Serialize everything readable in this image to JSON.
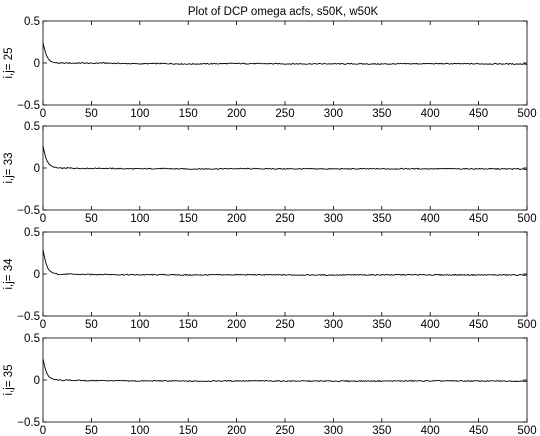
{
  "title": "Plot of DCP omega acfs, s50K, w50K",
  "chart_data": [
    {
      "type": "line",
      "ylabel": "i,j= 25",
      "xlim": [
        0,
        500
      ],
      "ylim": [
        -0.5,
        0.5
      ],
      "xticks": [
        0,
        50,
        100,
        150,
        200,
        250,
        300,
        350,
        400,
        450,
        500
      ],
      "yticks": [
        -0.5,
        0,
        0.5
      ],
      "ytick_labels": [
        "−0.5",
        "0",
        "0.5"
      ],
      "series": [
        {
          "x": [
            0,
            1,
            2,
            3,
            4,
            5,
            6,
            8,
            10,
            12,
            15,
            20,
            25,
            30,
            40,
            50,
            60,
            80,
            100,
            120,
            150,
            200,
            250,
            300,
            350,
            400,
            450,
            500
          ],
          "values": [
            0.24,
            0.19,
            0.15,
            0.11,
            0.08,
            0.06,
            0.04,
            0.02,
            0.01,
            0.005,
            0.0,
            -0.003,
            0.0,
            -0.002,
            0.0,
            -0.004,
            0.0,
            -0.005,
            -0.01,
            -0.006,
            -0.012,
            -0.006,
            -0.01,
            -0.01,
            -0.012,
            -0.008,
            -0.01,
            -0.012
          ]
        }
      ]
    },
    {
      "type": "line",
      "ylabel": "i,j= 33",
      "xlim": [
        0,
        500
      ],
      "ylim": [
        -0.5,
        0.5
      ],
      "xticks": [
        0,
        50,
        100,
        150,
        200,
        250,
        300,
        350,
        400,
        450,
        500
      ],
      "yticks": [
        -0.5,
        0,
        0.5
      ],
      "ytick_labels": [
        "−0.5",
        "0",
        "0.5"
      ],
      "series": [
        {
          "x": [
            0,
            1,
            2,
            3,
            4,
            5,
            6,
            8,
            10,
            12,
            15,
            20,
            25,
            30,
            40,
            50,
            60,
            80,
            100,
            120,
            150,
            200,
            250,
            300,
            350,
            400,
            450,
            500
          ],
          "values": [
            0.26,
            0.21,
            0.16,
            0.12,
            0.09,
            0.07,
            0.05,
            0.03,
            0.015,
            0.008,
            0.0,
            -0.003,
            0.0,
            -0.002,
            -0.004,
            -0.005,
            -0.003,
            -0.008,
            -0.01,
            -0.007,
            -0.012,
            -0.008,
            -0.01,
            -0.011,
            -0.01,
            -0.009,
            -0.01,
            -0.012
          ]
        }
      ]
    },
    {
      "type": "line",
      "ylabel": "i,j= 34",
      "xlim": [
        0,
        500
      ],
      "ylim": [
        -0.5,
        0.5
      ],
      "xticks": [
        0,
        50,
        100,
        150,
        200,
        250,
        300,
        350,
        400,
        450,
        500
      ],
      "yticks": [
        -0.5,
        0,
        0.5
      ],
      "ytick_labels": [
        "−0.5",
        "0",
        "0.5"
      ],
      "series": [
        {
          "x": [
            0,
            1,
            2,
            3,
            4,
            5,
            6,
            8,
            10,
            12,
            15,
            20,
            25,
            30,
            40,
            50,
            60,
            80,
            100,
            120,
            150,
            200,
            250,
            300,
            350,
            400,
            450,
            500
          ],
          "values": [
            0.29,
            0.23,
            0.18,
            0.13,
            0.1,
            0.07,
            0.05,
            0.03,
            0.015,
            0.008,
            0.0,
            -0.004,
            -0.001,
            -0.003,
            -0.005,
            -0.006,
            -0.004,
            -0.008,
            -0.01,
            -0.008,
            -0.012,
            -0.009,
            -0.011,
            -0.012,
            -0.01,
            -0.01,
            -0.011,
            -0.012
          ]
        }
      ]
    },
    {
      "type": "line",
      "ylabel": "i,j= 35",
      "xlim": [
        0,
        500
      ],
      "ylim": [
        -0.5,
        0.5
      ],
      "xticks": [
        0,
        50,
        100,
        150,
        200,
        250,
        300,
        350,
        400,
        450,
        500
      ],
      "yticks": [
        -0.5,
        0,
        0.5
      ],
      "ytick_labels": [
        "−0.5",
        "0",
        "0.5"
      ],
      "series": [
        {
          "x": [
            0,
            1,
            2,
            3,
            4,
            5,
            6,
            8,
            10,
            12,
            15,
            20,
            25,
            30,
            40,
            50,
            60,
            80,
            100,
            120,
            150,
            200,
            250,
            300,
            350,
            400,
            450,
            500
          ],
          "values": [
            0.25,
            0.2,
            0.15,
            0.11,
            0.08,
            0.06,
            0.04,
            0.025,
            0.012,
            0.006,
            0.0,
            -0.004,
            -0.002,
            -0.004,
            -0.006,
            -0.008,
            -0.006,
            -0.01,
            -0.012,
            -0.01,
            -0.014,
            -0.01,
            -0.012,
            -0.013,
            -0.012,
            -0.011,
            -0.012,
            -0.013
          ]
        }
      ]
    }
  ]
}
